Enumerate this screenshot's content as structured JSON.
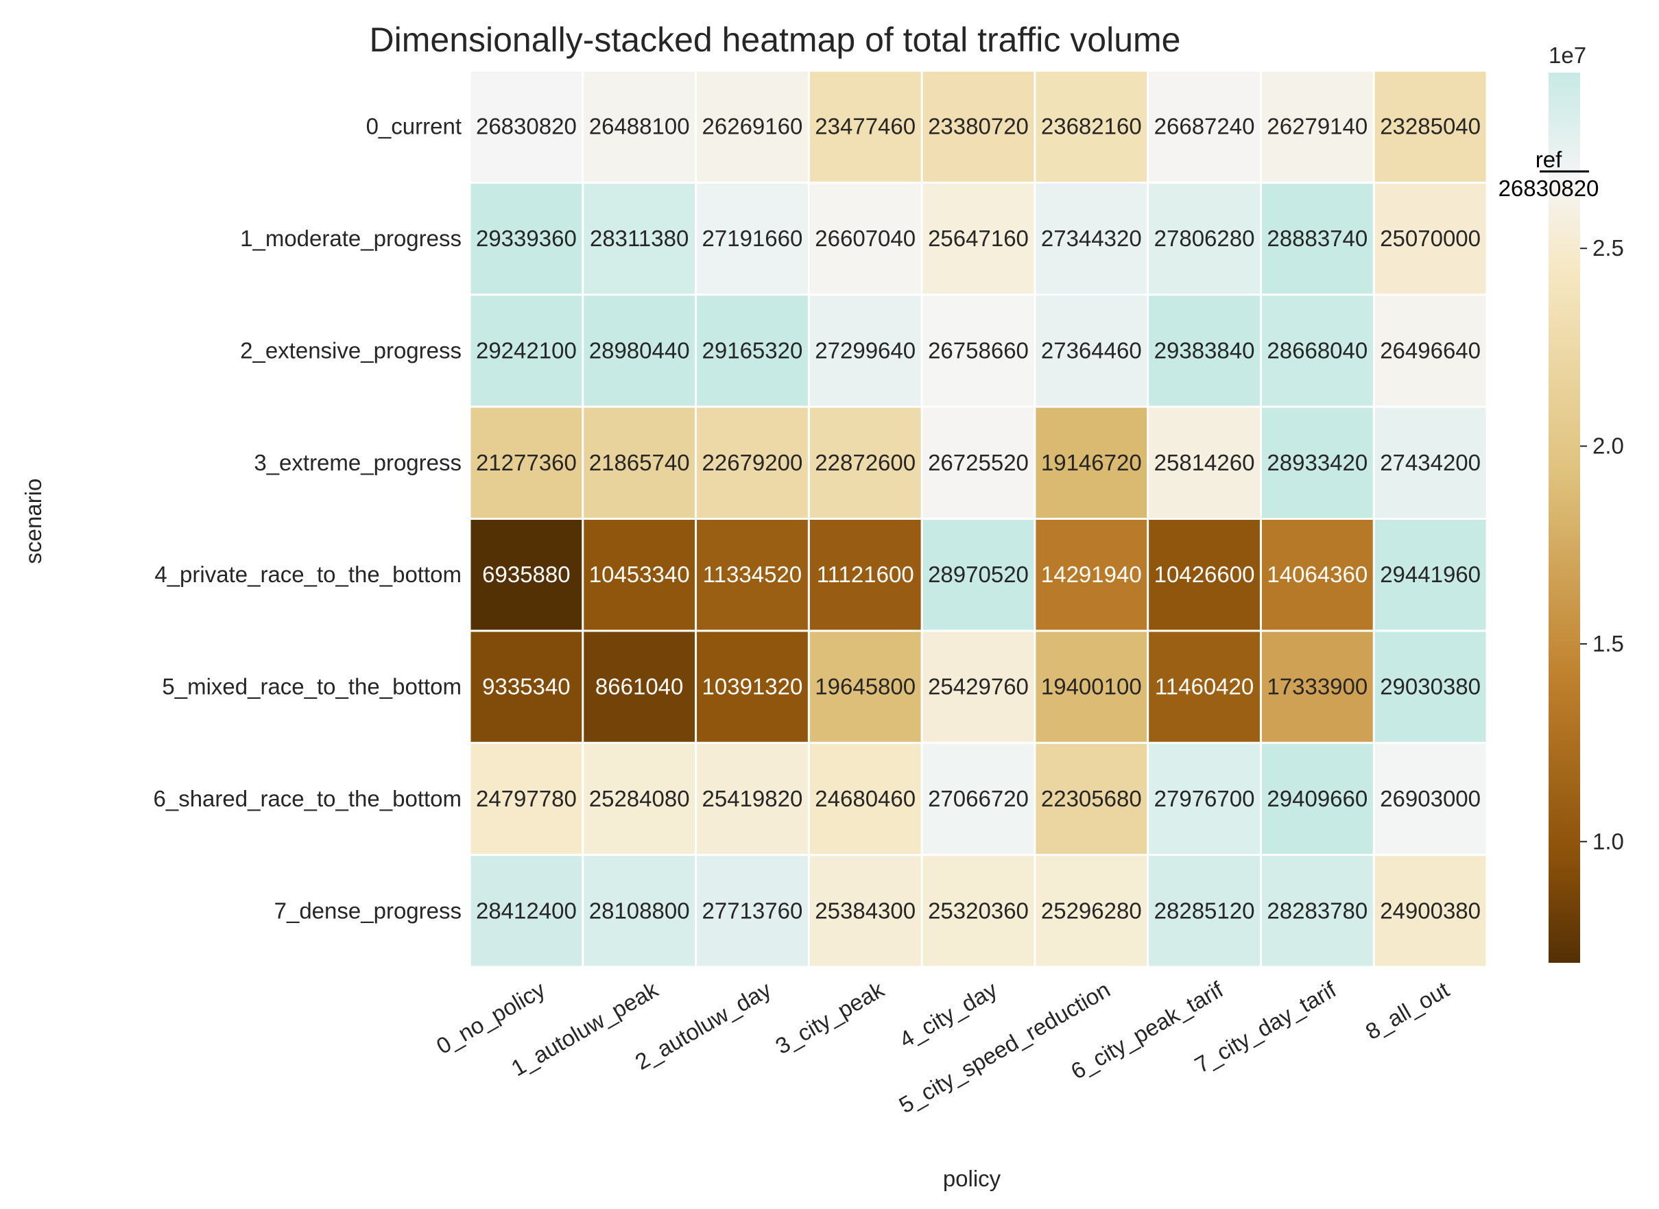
{
  "chart_data": {
    "type": "heatmap",
    "title": "Dimensionally-stacked heatmap of total traffic volume",
    "xlabel": "policy",
    "ylabel": "scenario",
    "x_categories": [
      "0_no_policy",
      "1_autoluw_peak",
      "2_autoluw_day",
      "3_city_peak",
      "4_city_day",
      "5_city_speed_reduction",
      "6_city_peak_tarif",
      "7_city_day_tarif",
      "8_all_out"
    ],
    "y_categories": [
      "0_current",
      "1_moderate_progress",
      "2_extensive_progress",
      "3_extreme_progress",
      "4_private_race_to_the_bottom",
      "5_mixed_race_to_the_bottom",
      "6_shared_race_to_the_bottom",
      "7_dense_progress"
    ],
    "values": [
      [
        26830820,
        26488100,
        26269160,
        23477460,
        23380720,
        23682160,
        26687240,
        26279140,
        23285040
      ],
      [
        29339360,
        28311380,
        27191660,
        26607040,
        25647160,
        27344320,
        27806280,
        28883740,
        25070000
      ],
      [
        29242100,
        28980440,
        29165320,
        27299640,
        26758660,
        27364460,
        29383840,
        28668040,
        26496640
      ],
      [
        21277360,
        21865740,
        22679200,
        22872600,
        26725520,
        19146720,
        25814260,
        28933420,
        27434200
      ],
      [
        6935880,
        10453340,
        11334520,
        11121600,
        28970520,
        14291940,
        10426600,
        14064360,
        29441960
      ],
      [
        9335340,
        8661040,
        10391320,
        19645800,
        25429760,
        19400100,
        11460420,
        17333900,
        29030380
      ],
      [
        24797780,
        25284080,
        25419820,
        24680460,
        27066720,
        22305680,
        27976700,
        29409660,
        26903000
      ],
      [
        28412400,
        28108800,
        27713760,
        25384300,
        25320360,
        25296280,
        28285120,
        28283780,
        24900380
      ]
    ],
    "reference_value": 26830820,
    "reference_label": "ref",
    "reference_value_label": "26830820",
    "colorbar": {
      "min": 6935880,
      "max": 29441960,
      "tick_values": [
        10000000,
        15000000,
        20000000,
        25000000
      ],
      "tick_labels": [
        "1.0",
        "1.5",
        "2.0",
        "2.5"
      ],
      "offset_label": "1e7",
      "colormap": "BrBG diverging, centered at reference",
      "stops": [
        "#543005",
        "#8c510a",
        "#bf812d",
        "#dfc27d",
        "#f6e8c3",
        "#f5f5f5",
        "#c7eae5"
      ]
    },
    "grid": true,
    "grid_color": "#ffffff"
  }
}
